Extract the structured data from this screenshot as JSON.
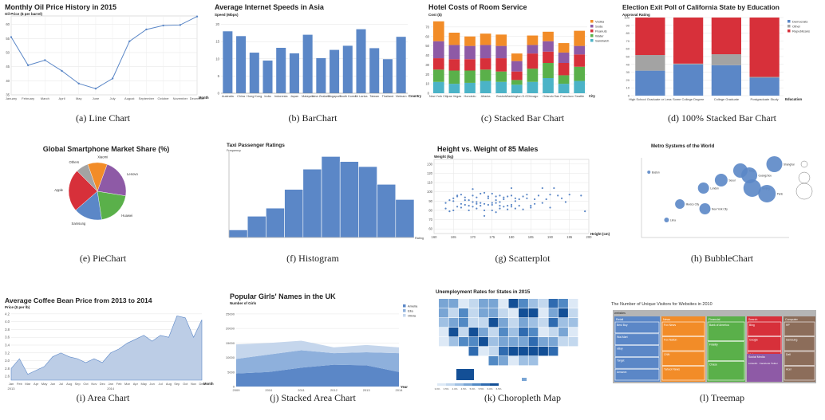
{
  "colors": {
    "blue": "#5b87c7",
    "blue_light": "#aec6e4",
    "orange": "#f28c28",
    "purple": "#8e5aa6",
    "red": "#d7303a",
    "green": "#5ab04a",
    "gray": "#a3a3a3",
    "teal": "#4bb3c7",
    "fill_light": "#bccde6"
  },
  "charts": [
    {
      "caption": "(a) Line Chart",
      "chart_data": {
        "type": "line",
        "title": "Monthly Oil Price History in 2015",
        "ylabel": "Oil Price ($ per barrel)",
        "xlabel": "Month",
        "categories": [
          "January",
          "February",
          "March",
          "April",
          "May",
          "June",
          "July",
          "August",
          "September",
          "October",
          "November",
          "December"
        ],
        "values": [
          55.5,
          45.5,
          47.3,
          43.5,
          39.0,
          37.2,
          40.8,
          54.0,
          58.2,
          59.6,
          59.8,
          62.8
        ],
        "yticks": [
          35,
          40,
          45,
          50,
          55,
          60
        ],
        "ylim": [
          35,
          63
        ]
      }
    },
    {
      "caption": "(b) BarChart",
      "chart_data": {
        "type": "bar",
        "title": "Average Internet Speeds in Asia",
        "ylabel": "Speed (Mbps)",
        "xlabel": "Country",
        "categories": [
          "Australia",
          "China",
          "Hong Kong",
          "India",
          "Indonesia",
          "Japan",
          "Malaysia",
          "New Zealand",
          "Singapore",
          "South Korea",
          "Sri Lanka",
          "Taiwan",
          "Thailand",
          "Vietnam"
        ],
        "values": [
          18.0,
          16.6,
          11.8,
          9.5,
          13.2,
          11.6,
          17.0,
          10.2,
          12.6,
          13.8,
          18.6,
          13.1,
          9.9,
          16.4
        ],
        "yticks": [
          0,
          5,
          10,
          15,
          20
        ],
        "ylim": [
          0,
          22
        ]
      }
    },
    {
      "caption": "(c) Stacked Bar Chart",
      "chart_data": {
        "type": "bar",
        "stacked": true,
        "title": "Hotel Costs of Room Service",
        "ylabel": "Cost ($)",
        "xlabel": "City",
        "categories": [
          "New York City",
          "Las Vegas",
          "Honolulu",
          "Atlanta",
          "Boston",
          "Washington D.C.",
          "Chicago",
          "Orlando",
          "San Francisco",
          "Seattle"
        ],
        "series": [
          {
            "name": "Sandwich",
            "values": [
              12,
              10,
              11,
              13,
              12,
              9,
              12,
              16,
              10,
              13
            ],
            "color": "#4bb3c7"
          },
          {
            "name": "Water",
            "values": [
              13,
              14,
              13,
              12,
              11,
              5,
              14,
              16,
              9,
              15
            ],
            "color": "#5ab04a"
          },
          {
            "name": "Peanuts",
            "values": [
              12,
              12,
              12,
              12,
              14,
              9,
              16,
              12,
              13,
              13
            ],
            "color": "#d7303a"
          },
          {
            "name": "Soda",
            "values": [
              18,
              15,
              14,
              14,
              13,
              11,
              9,
              11,
              11,
              9
            ],
            "color": "#8e5aa6"
          },
          {
            "name": "Vodka",
            "values": [
              21,
              13,
              10,
              12,
              12,
              8,
              10,
              10,
              10,
              16
            ],
            "color": "#f28c28"
          }
        ],
        "legend_order": [
          "Vodka",
          "Soda",
          "Peanuts",
          "Water",
          "Sandwich"
        ],
        "yticks": [
          0,
          10,
          20,
          30,
          40,
          50,
          60,
          70
        ],
        "ylim": [
          0,
          80
        ]
      }
    },
    {
      "caption": "(d) 100% Stacked Bar Chart",
      "chart_data": {
        "type": "bar",
        "stacked": true,
        "normalized": true,
        "title": "Election Exit Poll of California State by Education",
        "ylabel": "Approval Rating",
        "xlabel": "Education",
        "categories": [
          "High School Graduate or Less",
          "Some College Degree",
          "College Graduate",
          "Postgraduate Study"
        ],
        "series": [
          {
            "name": "Democrats",
            "values": [
              32,
              40,
              39,
              23
            ],
            "color": "#5b87c7"
          },
          {
            "name": "Other",
            "values": [
              20,
              1,
              14,
              1
            ],
            "color": "#a3a3a3"
          },
          {
            "name": "Republicans",
            "values": [
              48,
              59,
              47,
              76
            ],
            "color": "#d7303a"
          }
        ],
        "legend_order": [
          "Democrats",
          "Other",
          "Republicans"
        ],
        "yticks": [
          0,
          10,
          20,
          30,
          40,
          50,
          60,
          70,
          80,
          90,
          100
        ],
        "ylim": [
          0,
          100
        ]
      }
    },
    {
      "caption": "(e) PieChart",
      "chart_data": {
        "type": "pie",
        "title": "Global Smartphone Market Share (%)",
        "categories": [
          "Lenovo",
          "Huawei",
          "Samsung",
          "Apple",
          "Others",
          "Xiaomi"
        ],
        "values": [
          22,
          20,
          16,
          24,
          7,
          11
        ],
        "colors": [
          "#8e5aa6",
          "#5ab04a",
          "#5b87c7",
          "#d7303a",
          "#a3a3a3",
          "#f28c28"
        ]
      }
    },
    {
      "caption": "(f) Histogram",
      "chart_data": {
        "type": "bar",
        "histogram": true,
        "title": "Taxi Passenger Ratings",
        "ylabel": "Frequency",
        "xlabel": "Rating",
        "values": [
          1.5,
          4.2,
          5.8,
          9.5,
          13.5,
          16.0,
          15.0,
          14.0,
          10.5,
          7.5
        ],
        "ylim": [
          0,
          17
        ]
      }
    },
    {
      "caption": "(g) Scatterplot",
      "chart_data": {
        "type": "scatter",
        "title": "Height vs. Weight of 85 Males",
        "ylabel": "Weight (kg)",
        "xlabel": "Height (cm)",
        "xticks": [
          160,
          165,
          170,
          175,
          180,
          185,
          190,
          195,
          200
        ],
        "yticks": [
          60,
          70,
          80,
          90,
          100,
          110,
          120,
          130
        ],
        "xlim": [
          160,
          200
        ],
        "ylim": [
          55,
          135
        ],
        "points": [
          [
            163,
            88
          ],
          [
            163,
            82
          ],
          [
            164,
            79
          ],
          [
            165,
            93
          ],
          [
            165,
            90
          ],
          [
            165,
            80
          ],
          [
            166,
            95
          ],
          [
            166,
            96
          ],
          [
            167,
            87
          ],
          [
            167,
            83
          ],
          [
            168,
            86
          ],
          [
            168,
            91
          ],
          [
            168,
            94
          ],
          [
            169,
            91
          ],
          [
            169,
            85
          ],
          [
            170,
            84
          ],
          [
            170,
            103
          ],
          [
            170,
            89
          ],
          [
            170,
            96
          ],
          [
            171,
            89
          ],
          [
            171,
            94
          ],
          [
            171,
            82
          ],
          [
            172,
            88
          ],
          [
            172,
            85
          ],
          [
            172,
            98
          ],
          [
            173,
            80
          ],
          [
            173,
            87
          ],
          [
            173,
            74
          ],
          [
            174,
            93
          ],
          [
            174,
            95
          ],
          [
            174,
            86
          ],
          [
            175,
            88
          ],
          [
            175,
            80
          ],
          [
            175,
            98
          ],
          [
            176,
            88
          ],
          [
            176,
            91
          ],
          [
            176,
            78
          ],
          [
            177,
            96
          ],
          [
            177,
            85
          ],
          [
            177,
            89
          ],
          [
            178,
            92
          ],
          [
            178,
            84
          ],
          [
            179,
            85
          ],
          [
            179,
            95
          ],
          [
            180,
            84
          ],
          [
            180,
            86
          ],
          [
            180,
            96
          ],
          [
            180,
            104
          ],
          [
            181,
            90
          ],
          [
            181,
            93
          ],
          [
            182,
            92
          ],
          [
            183,
            81
          ],
          [
            184,
            97
          ],
          [
            184,
            93
          ],
          [
            185,
            83
          ],
          [
            185,
            85
          ],
          [
            186,
            87
          ],
          [
            187,
            96
          ],
          [
            188,
            104
          ],
          [
            189,
            92
          ],
          [
            190,
            97
          ],
          [
            190,
            83
          ],
          [
            191,
            104
          ],
          [
            192,
            96
          ],
          [
            193,
            93
          ],
          [
            195,
            97
          ],
          [
            198,
            96
          ],
          [
            199,
            79
          ],
          [
            166,
            84
          ],
          [
            167,
            97
          ],
          [
            169,
            80
          ],
          [
            171,
            87
          ],
          [
            173,
            99
          ],
          [
            175,
            86
          ],
          [
            177,
            82
          ],
          [
            178,
            94
          ],
          [
            179,
            81
          ],
          [
            182,
            85
          ],
          [
            183,
            95
          ],
          [
            186,
            92
          ],
          [
            188,
            88
          ],
          [
            194,
            89
          ],
          [
            164,
            91
          ],
          [
            176,
            95
          ],
          [
            181,
            82
          ]
        ]
      }
    },
    {
      "caption": "(h) BubbleChart",
      "chart_data": {
        "type": "scatter",
        "bubble": true,
        "title": "Metro Systems of the World",
        "points": [
          {
            "label": "Boston",
            "x": 5,
            "y": 82,
            "r": 2
          },
          {
            "label": "Mexico City",
            "x": 26,
            "y": 42,
            "r": 6
          },
          {
            "label": "Lima",
            "x": 17,
            "y": 22,
            "r": 3
          },
          {
            "label": "London",
            "x": 42,
            "y": 62,
            "r": 7
          },
          {
            "label": "New York City",
            "x": 43,
            "y": 36,
            "r": 7
          },
          {
            "label": "Seoul",
            "x": 54,
            "y": 72,
            "r": 8
          },
          {
            "label": "Tokyo",
            "x": 67,
            "y": 84,
            "r": 9
          },
          {
            "label": "Guangzhou",
            "x": 73,
            "y": 78,
            "r": 10
          },
          {
            "label": "Beijing",
            "x": 75,
            "y": 62,
            "r": 11
          },
          {
            "label": "Paris",
            "x": 85,
            "y": 55,
            "r": 11
          },
          {
            "label": "Shanghai",
            "x": 90,
            "y": 92,
            "r": 10
          }
        ]
      }
    },
    {
      "caption": "(i) Area Chart",
      "chart_data": {
        "type": "area",
        "title": "Average Coffee Bean Price from 2013 to 2014",
        "ylabel": "Price ($ per lb)",
        "xlabel": "Month",
        "categories": [
          "Jan",
          "Feb",
          "Mar",
          "Apr",
          "May",
          "Jun",
          "Jul",
          "Aug",
          "Sep",
          "Oct",
          "Nov",
          "Dec",
          "Jan",
          "Feb",
          "Mar",
          "Apr",
          "May",
          "Jun",
          "Jul",
          "Aug",
          "Sep",
          "Oct",
          "Nov",
          "Dec"
        ],
        "year_labels": [
          "2013",
          "2014"
        ],
        "values": [
          2.8,
          3.05,
          2.65,
          2.75,
          2.85,
          3.1,
          3.2,
          3.1,
          3.05,
          2.95,
          3.05,
          2.95,
          3.2,
          3.3,
          3.45,
          3.55,
          3.65,
          3.5,
          3.65,
          3.6,
          4.15,
          4.1,
          3.6,
          4.05
        ],
        "yticks": [
          2.6,
          2.8,
          3.0,
          3.2,
          3.4,
          3.6,
          3.8,
          4.0,
          4.2
        ],
        "ylim": [
          2.5,
          4.3
        ]
      }
    },
    {
      "caption": "(j) Stacked Area Chart",
      "chart_data": {
        "type": "area",
        "stacked": true,
        "title": "Popular Girls' Names in the UK",
        "ylabel": "Number of Girls",
        "xlabel": "Year",
        "x": [
          "2009",
          "2010",
          "2011",
          "2012",
          "2013",
          "2014"
        ],
        "series": [
          {
            "name": "Amelia",
            "values": [
              4500,
              5000,
              6500,
              7500,
              7300,
              5000
            ],
            "color": "#5b87c7"
          },
          {
            "name": "Ella",
            "values": [
              5000,
              6000,
              6000,
              4000,
              4500,
              6500
            ],
            "color": "#8eb0dc"
          },
          {
            "name": "Olivia",
            "values": [
              5000,
              4000,
              3300,
              2000,
              2500,
              2000
            ],
            "color": "#c5d6ec"
          }
        ],
        "yticks": [
          0,
          5000,
          10000,
          15000,
          20000,
          25000
        ],
        "ylim": [
          0,
          28000
        ]
      }
    },
    {
      "caption": "(k) Choropleth Map",
      "title": "Unemployment Rates for States in 2015",
      "legend": [
        "3.0%",
        "3.5%",
        "4.0%",
        "4.5%",
        "5.0%",
        "5.5%",
        "6.0%",
        "6.5%"
      ]
    },
    {
      "caption": "(l) Treemap",
      "title": "The Number of Unique Visitors for Websites in 2010",
      "header": "websites",
      "groups": [
        {
          "name": "Retail",
          "color": "#5b87c7",
          "items": [
            "Best Buy",
            "Wal-Mart",
            "eBay",
            "Target",
            "Amazon"
          ]
        },
        {
          "name": "News",
          "color": "#f28c28",
          "items": [
            "Fox News",
            "Fox Nation",
            "CNN",
            "Yahoo! News"
          ]
        },
        {
          "name": "Financial",
          "color": "#5ab04a",
          "items": [
            "Bank of America",
            "Fidelity",
            "Chase"
          ]
        },
        {
          "name": "Search",
          "color": "#d7303a",
          "items": [
            "Bing",
            "Google",
            "Ask",
            "AOL"
          ]
        },
        {
          "name": "Social Media",
          "color": "#8e5aa6",
          "items": [
            "LinkedIn",
            "Facebook",
            "Twitter"
          ]
        },
        {
          "name": "Computer",
          "color": "#8c6d5a",
          "items": [
            "HP",
            "Samsung",
            "Dell",
            "Acer"
          ]
        }
      ]
    }
  ]
}
